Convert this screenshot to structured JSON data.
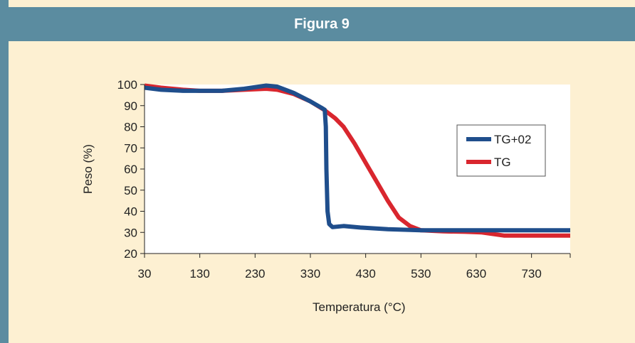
{
  "figure": {
    "title": "Figura 9",
    "colors": {
      "header": "#5b8ca0",
      "background": "#fdf0d2",
      "plot_area": "#ffffff"
    }
  },
  "chart_data": {
    "type": "line",
    "title": "",
    "xlabel": "Temperatura (°C)",
    "ylabel": "Peso (%)",
    "xlim": [
      30,
      800
    ],
    "ylim": [
      20,
      100
    ],
    "x_ticks": [
      "30",
      "130",
      "230",
      "330",
      "430",
      "530",
      "630",
      "730"
    ],
    "y_ticks": [
      "20",
      "30",
      "40",
      "50",
      "60",
      "70",
      "80",
      "90",
      "100"
    ],
    "grid": false,
    "legend_position": "right",
    "series": [
      {
        "name": "TG+02",
        "color": "#1f4e8c",
        "points": [
          [
            30,
            98.5
          ],
          [
            60,
            97.5
          ],
          [
            100,
            97
          ],
          [
            130,
            97
          ],
          [
            170,
            97
          ],
          [
            210,
            98
          ],
          [
            250,
            99.5
          ],
          [
            270,
            99
          ],
          [
            300,
            96
          ],
          [
            330,
            92
          ],
          [
            350,
            89
          ],
          [
            356,
            88
          ],
          [
            358,
            80
          ],
          [
            359,
            60
          ],
          [
            361,
            40
          ],
          [
            364,
            34
          ],
          [
            370,
            32.5
          ],
          [
            390,
            33
          ],
          [
            420,
            32.3
          ],
          [
            470,
            31.5
          ],
          [
            530,
            31
          ],
          [
            600,
            31
          ],
          [
            650,
            31
          ],
          [
            700,
            31
          ],
          [
            800,
            31
          ]
        ]
      },
      {
        "name": "TG",
        "color": "#d9262e",
        "points": [
          [
            30,
            99.5
          ],
          [
            60,
            98.5
          ],
          [
            100,
            97.5
          ],
          [
            130,
            97
          ],
          [
            170,
            97
          ],
          [
            210,
            97.5
          ],
          [
            250,
            98
          ],
          [
            270,
            97.5
          ],
          [
            300,
            95.5
          ],
          [
            330,
            92
          ],
          [
            355,
            88
          ],
          [
            375,
            84
          ],
          [
            390,
            80
          ],
          [
            410,
            72
          ],
          [
            430,
            63
          ],
          [
            450,
            54
          ],
          [
            470,
            45
          ],
          [
            490,
            37
          ],
          [
            510,
            33
          ],
          [
            530,
            31
          ],
          [
            570,
            30.5
          ],
          [
            610,
            30.3
          ],
          [
            640,
            30
          ],
          [
            680,
            28.5
          ],
          [
            720,
            28.5
          ],
          [
            800,
            28.5
          ]
        ]
      }
    ]
  }
}
